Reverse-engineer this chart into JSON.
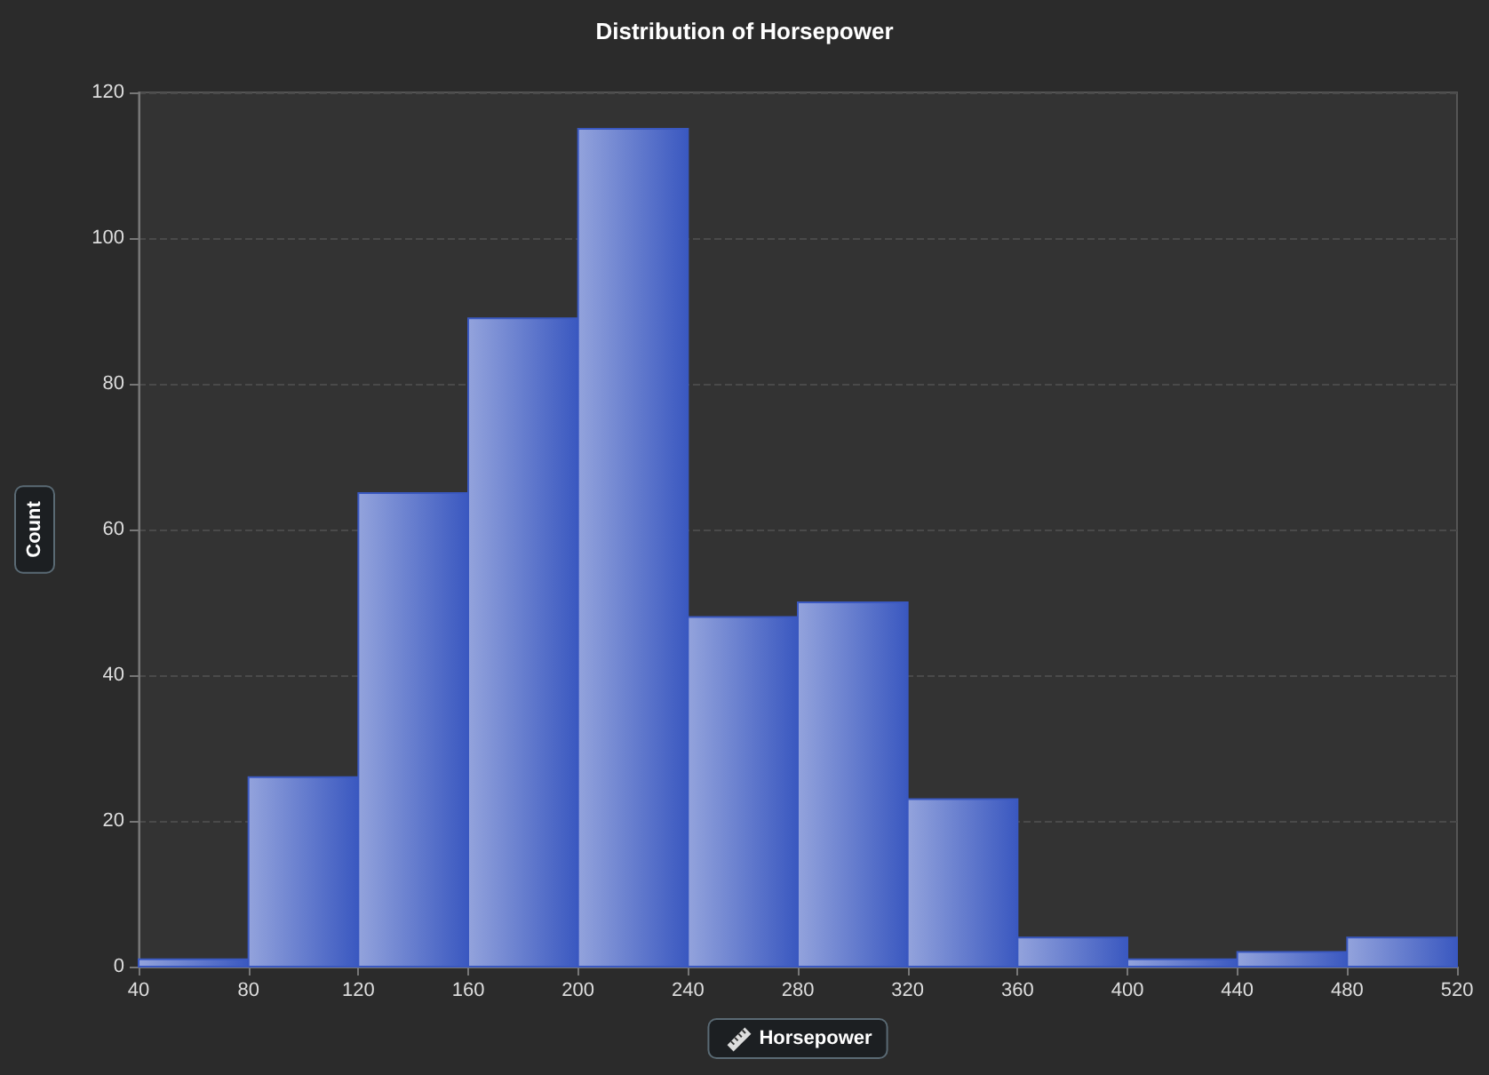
{
  "chart_data": {
    "type": "histogram",
    "title": "Distribution of Horsepower",
    "xlabel": "Horsepower",
    "ylabel": "Count",
    "bins": [
      40,
      80,
      120,
      160,
      200,
      240,
      280,
      320,
      360,
      400,
      440,
      480,
      520
    ],
    "values": [
      1,
      26,
      65,
      89,
      115,
      48,
      50,
      23,
      4,
      1,
      2,
      4
    ],
    "color": "#3a58c0",
    "xlim": [
      40,
      520
    ],
    "xticks": [
      40,
      80,
      120,
      160,
      200,
      240,
      280,
      320,
      360,
      400,
      440,
      480,
      520
    ],
    "ylim": [
      0,
      120
    ],
    "yticks": [
      0,
      20,
      40,
      60,
      80,
      100,
      120
    ],
    "grid": "y"
  }
}
